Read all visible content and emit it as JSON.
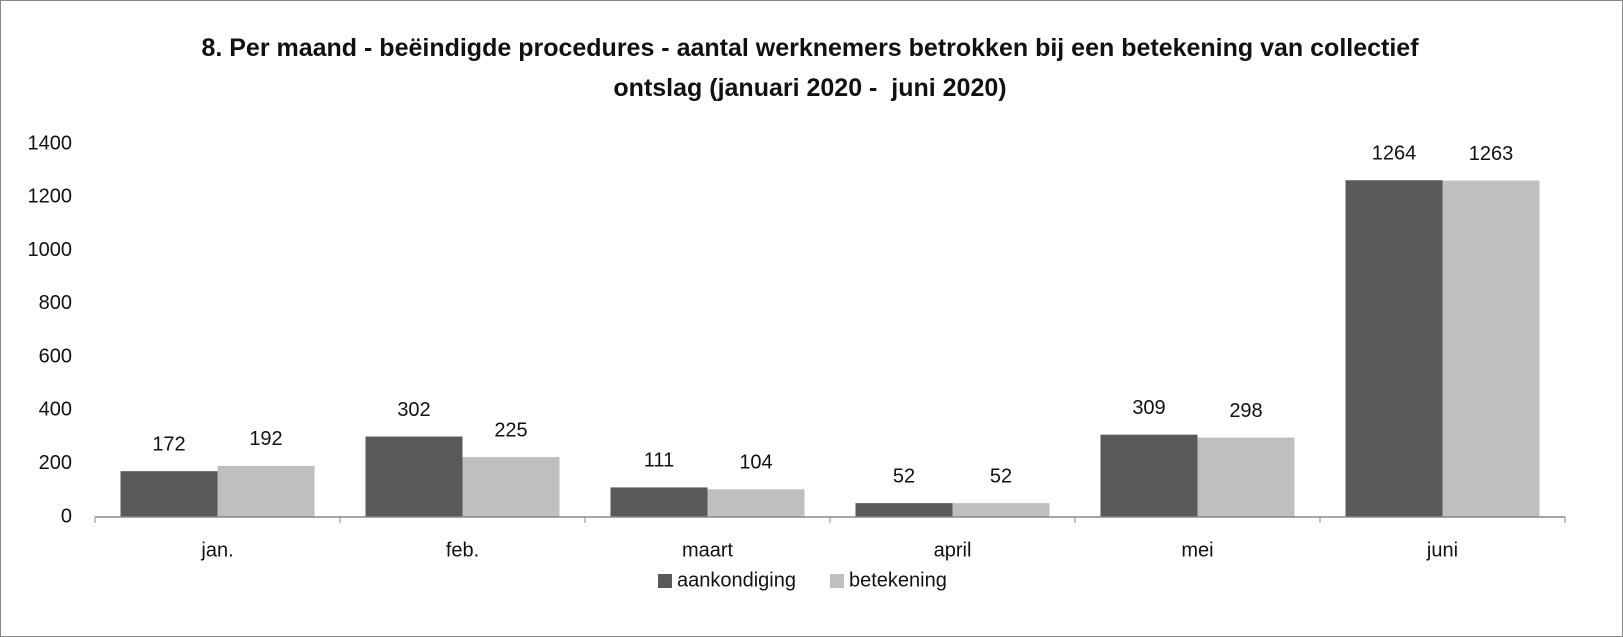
{
  "chart_data": {
    "type": "bar",
    "title": "8. Per maand - beëindigde procedures - aantal werknemers betrokken bij een betekening van collectief ontslag (januari 2020 -  juni 2020)",
    "categories": [
      "jan.",
      "feb.",
      "maart",
      "april",
      "mei",
      "juni"
    ],
    "series": [
      {
        "name": "aankondiging",
        "color": "#595959",
        "values": [
          172,
          302,
          111,
          52,
          309,
          1264
        ]
      },
      {
        "name": "betekening",
        "color": "#bfbfbf",
        "values": [
          192,
          225,
          104,
          52,
          298,
          1263
        ]
      }
    ],
    "ylim": [
      0,
      1400
    ],
    "yticks": [
      0,
      200,
      400,
      600,
      800,
      1000,
      1200,
      1400
    ],
    "grid": false,
    "legend": "bottom"
  }
}
